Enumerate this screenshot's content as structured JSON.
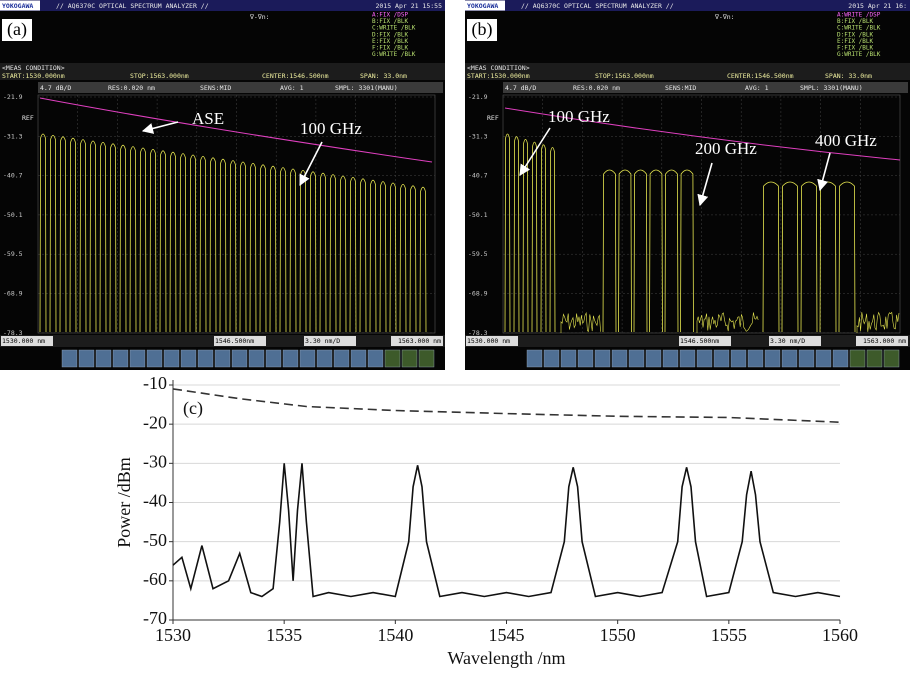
{
  "panels": [
    {
      "label": "(a)",
      "brand": "YOKOGAWA",
      "title": "// AQ6370C OPTICAL SPECTRUM ANALYZER //",
      "timestamp": "2015 Apr 21 15:55",
      "marker": "∇-∇n:",
      "traces": [
        "A:FIX /DSP",
        "B:FIX /BLK",
        "C:WRITE /BLK",
        "D:FIX /BLK",
        "E:FIX /BLK",
        "F:FIX /BLK",
        "G:WRITE /BLK"
      ],
      "meas": "<MEAS CONDITION>",
      "start": "START:1530.000nm",
      "stop": "STOP:1563.000nm",
      "center": "CENTER:1546.500nm",
      "span": "SPAN: 33.0nm",
      "scale": "4.7 dB/D",
      "res": "RES:0.020 nm",
      "sens": "SENS:MID",
      "avg": "AVG: 1",
      "smpl": "SMPL: 3301(MANU)",
      "ref": "REF",
      "levels": [
        "-21.9",
        "-31.3",
        "-40.7",
        "-50.1",
        "-59.5",
        "-68.9",
        "-78.3"
      ],
      "x_start": "1530.000 nm",
      "x_center": "1546.500nm",
      "x_div": "3.30 nm/D",
      "x_stop": "1563.000 nm",
      "annotations": [
        "ASE",
        "100 GHz"
      ]
    },
    {
      "label": "(b)",
      "brand": "YOKOGAWA",
      "title": "// AQ6370C OPTICAL SPECTRUM ANALYZER //",
      "timestamp": "2015 Apr 21 16:",
      "marker": "∇-∇n:",
      "traces": [
        "A:WRITE /DSP",
        "B:FIX /BLK",
        "C:WRITE /BLK",
        "D:FIX /BLK",
        "E:FIX /BLK",
        "F:FIX /BLK",
        "G:WRITE /BLK"
      ],
      "meas": "<MEAS CONDITION>",
      "start": "START:1530.000nm",
      "stop": "STOP:1563.000nm",
      "center": "CENTER:1546.500nm",
      "span": "SPAN: 33.0nm",
      "scale": "4.7 dB/D",
      "res": "RES:0.020 nm",
      "sens": "SENS:MID",
      "avg": "AVG: 1",
      "smpl": "SMPL: 3301(MANU)",
      "ref": "REF",
      "levels": [
        "-21.9",
        "-31.3",
        "-40.7",
        "-50.1",
        "-59.5",
        "-68.9",
        "-78.3"
      ],
      "x_start": "1530.000 nm",
      "x_center": "1546.500nm",
      "x_div": "3.30 nm/D",
      "x_stop": "1563.000 nm",
      "annotations": [
        "100 GHz",
        "200 GHz",
        "400 GHz"
      ]
    }
  ],
  "chart_data": {
    "type": "line",
    "label": "(c)",
    "xlabel": "Wavelength /nm",
    "ylabel": "Power /dBm",
    "xlim": [
      1530,
      1560
    ],
    "ylim": [
      -70,
      -10
    ],
    "xticks": [
      1530,
      1535,
      1540,
      1545,
      1550,
      1555,
      1560
    ],
    "yticks": [
      -10,
      -20,
      -30,
      -40,
      -50,
      -60,
      -70
    ],
    "grid": true,
    "series": [
      {
        "color": "#333333",
        "dashed": true,
        "x": [
          1530,
          1533,
          1536,
          1540,
          1545,
          1550,
          1555,
          1560
        ],
        "values": [
          -11,
          -13.5,
          -15.5,
          -16.5,
          -17.3,
          -18,
          -18.3,
          -19.5
        ]
      },
      {
        "color": "#111111",
        "dashed": false,
        "x": [
          1530,
          1530.4,
          1530.8,
          1531.3,
          1531.8,
          1532.5,
          1533,
          1533.5,
          1534,
          1534.5,
          1534.8,
          1535,
          1535.2,
          1535.4,
          1535.6,
          1535.8,
          1536,
          1536.3,
          1537,
          1538,
          1539,
          1540,
          1540.6,
          1540.8,
          1541,
          1541.2,
          1541.4,
          1542,
          1543,
          1544,
          1545,
          1546,
          1547,
          1547.6,
          1547.8,
          1548,
          1548.2,
          1548.4,
          1549,
          1550,
          1551,
          1552,
          1552.7,
          1552.9,
          1553.1,
          1553.3,
          1553.5,
          1554,
          1555,
          1555.6,
          1555.8,
          1556,
          1556.2,
          1556.4,
          1557,
          1558,
          1559,
          1560
        ],
        "values": [
          -56,
          -54,
          -62,
          -51,
          -62,
          -60,
          -53,
          -63,
          -64,
          -62,
          -45,
          -30,
          -42,
          -60,
          -42,
          -30,
          -45,
          -64,
          -63,
          -64,
          -63,
          -64,
          -50,
          -36,
          -30.5,
          -36,
          -50,
          -64,
          -63,
          -64,
          -63,
          -64,
          -63,
          -50,
          -36,
          -31,
          -36,
          -50,
          -64,
          -63,
          -64,
          -63,
          -50,
          -36,
          -31,
          -36,
          -50,
          -64,
          -63,
          -50,
          -38,
          -32,
          -38,
          -50,
          -63,
          -64,
          -63,
          -64
        ]
      }
    ]
  }
}
